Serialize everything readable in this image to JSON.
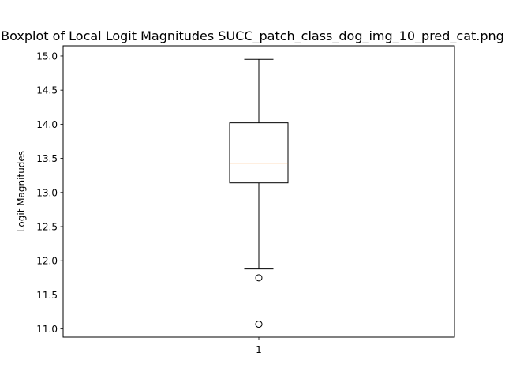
{
  "chart_data": {
    "type": "boxplot",
    "title": "Boxplot of Local Logit Magnitudes SUCC_patch_class_dog_img_10_pred_cat.png",
    "xlabel": "",
    "ylabel": "Logit Magnitudes",
    "categories": [
      "1"
    ],
    "ylim": [
      10.88,
      15.15
    ],
    "yticks": [
      11.0,
      11.5,
      12.0,
      12.5,
      13.0,
      13.5,
      14.0,
      14.5,
      15.0
    ],
    "ytick_labels": [
      "11.0",
      "11.5",
      "12.0",
      "12.5",
      "13.0",
      "13.5",
      "14.0",
      "14.5",
      "15.0"
    ],
    "grid": false,
    "boxes": [
      {
        "category": "1",
        "whisker_low": 11.88,
        "q1": 13.14,
        "median": 13.43,
        "q3": 14.02,
        "whisker_high": 14.95,
        "outliers": [
          11.75,
          11.07
        ]
      }
    ],
    "colors": {
      "box": "#000000",
      "median": "#ff7f0e",
      "whisker": "#000000",
      "flier": "#000000"
    }
  }
}
